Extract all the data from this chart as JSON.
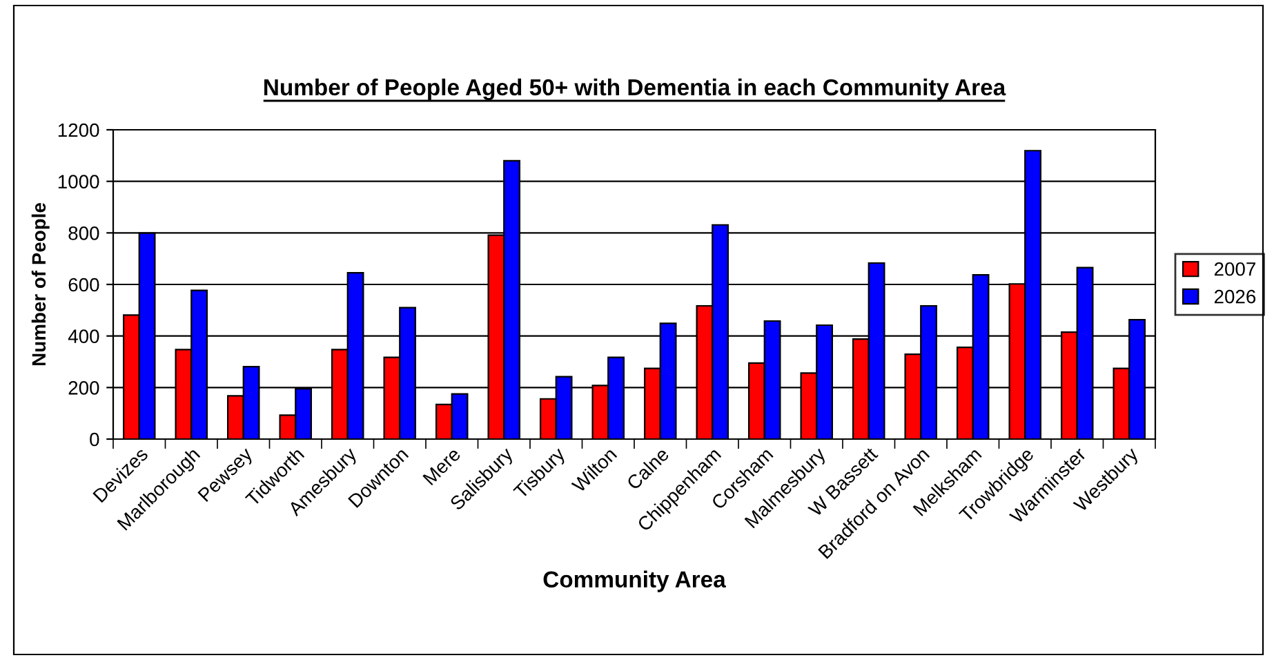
{
  "chart_data": {
    "type": "bar",
    "title": "Number of People Aged 50+ with Dementia in each Community Area",
    "xlabel": "Community Area",
    "ylabel": "Number of People",
    "categories": [
      "Devizes",
      "Marlborough",
      "Pewsey",
      "Tidworth",
      "Amesbury",
      "Downton",
      "Mere",
      "Salisbury",
      "Tisbury",
      "Wilton",
      "Calne",
      "Chippenham",
      "Corsham",
      "Malmesbury",
      "W Bassett",
      "Bradford on Avon",
      "Melksham",
      "Trowbridge",
      "Warminster",
      "Westbury"
    ],
    "series": [
      {
        "name": "2007",
        "color": "#ff0000",
        "values": [
          481,
          347,
          168,
          93,
          347,
          317,
          134,
          791,
          156,
          208,
          274,
          517,
          295,
          256,
          388,
          329,
          356,
          602,
          415,
          274
        ]
      },
      {
        "name": "2026",
        "color": "#0000ff",
        "values": [
          799,
          577,
          281,
          195,
          645,
          510,
          175,
          1080,
          242,
          317,
          449,
          831,
          458,
          442,
          683,
          517,
          637,
          1119,
          665,
          463
        ]
      }
    ],
    "ylim": [
      0,
      1200
    ],
    "yticks": [
      0,
      200,
      400,
      600,
      800,
      1000,
      1200
    ],
    "grid": "y",
    "legend": "right"
  }
}
